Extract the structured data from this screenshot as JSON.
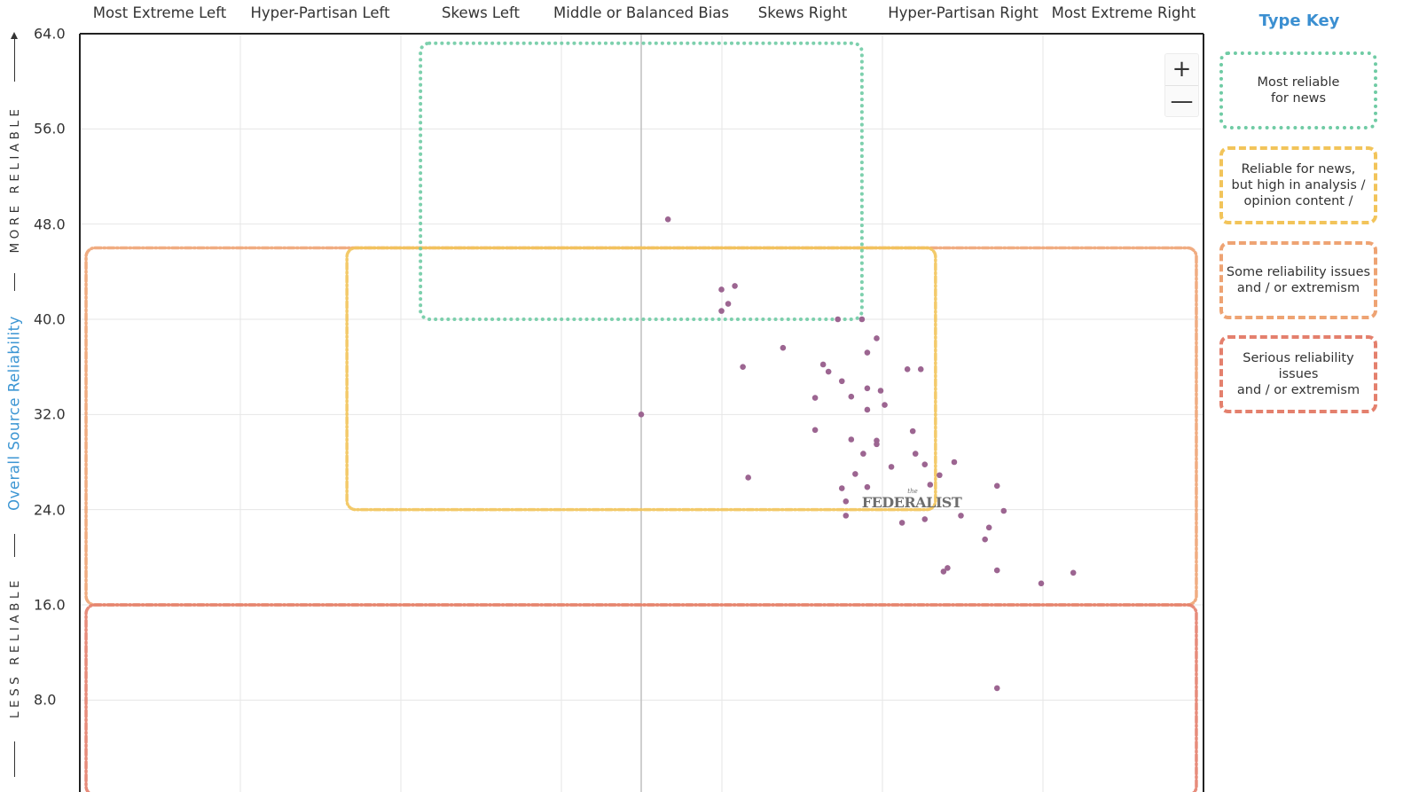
{
  "bias_labels": [
    "Most Extreme Left",
    "Hyper-Partisan Left",
    "Skews Left",
    "Middle or Balanced Bias",
    "Skews Right",
    "Hyper-Partisan Right",
    "Most Extreme Right"
  ],
  "y_axis": {
    "title": "Overall Source Reliability",
    "top_label": "MORE RELIABLE",
    "bottom_label": "LESS RELIABLE"
  },
  "zoom": {
    "in": "+",
    "out": "—"
  },
  "legend": {
    "title": "Type Key",
    "items": [
      {
        "label_line1": "Most reliable",
        "label_line2": "for news",
        "color": "#6fcba4",
        "style": "dotted"
      },
      {
        "label_line1": "Reliable for news,",
        "label_line2": "but high in analysis /",
        "label_line3": "opinion content /",
        "color": "#f2c45a",
        "style": "dashdot"
      },
      {
        "label_line1": "Some reliability issues",
        "label_line2": "and / or extremism",
        "color": "#eea373",
        "style": "dashdot"
      },
      {
        "label_line1": "Serious reliability issues",
        "label_line2": "and / or extremism",
        "color": "#e4806d",
        "style": "dashdot"
      }
    ]
  },
  "highlighted_source": {
    "name": "FEDERALIST",
    "prefix": "the"
  },
  "chart_data": {
    "type": "scatter",
    "xlim": [
      -42,
      42
    ],
    "ylim": [
      0,
      64
    ],
    "yticks": [
      8.0,
      16.0,
      24.0,
      32.0,
      40.0,
      48.0,
      56.0,
      64.0
    ],
    "grid": true,
    "point_color": "#9c6591",
    "regions": [
      {
        "type": "Most reliable for news",
        "x": [
          -16.5,
          16.5
        ],
        "y": [
          40,
          63.2
        ],
        "color": "#6fcba4"
      },
      {
        "type": "Reliable for news, but high in analysis / opinion content",
        "x": [
          -22,
          22
        ],
        "y": [
          24,
          46
        ],
        "color": "#f2c45a"
      },
      {
        "type": "Some reliability issues and / or extremism",
        "x": [
          -41.5,
          41.5
        ],
        "y": [
          16,
          46
        ],
        "color": "#eea373"
      },
      {
        "type": "Serious reliability issues and / or extremism",
        "x": [
          -41.5,
          41.5
        ],
        "y": [
          0,
          16
        ],
        "color": "#e4806d"
      }
    ],
    "points": [
      {
        "x": 2.0,
        "y": 48.4
      },
      {
        "x": 0.0,
        "y": 32.0
      },
      {
        "x": 6.0,
        "y": 42.5
      },
      {
        "x": 7.0,
        "y": 42.8
      },
      {
        "x": 6.5,
        "y": 41.3
      },
      {
        "x": 6.0,
        "y": 40.7
      },
      {
        "x": 7.6,
        "y": 36.0
      },
      {
        "x": 8.0,
        "y": 26.7
      },
      {
        "x": 10.6,
        "y": 37.6
      },
      {
        "x": 13.0,
        "y": 33.4
      },
      {
        "x": 13.0,
        "y": 30.7
      },
      {
        "x": 13.6,
        "y": 36.2
      },
      {
        "x": 14.0,
        "y": 35.6
      },
      {
        "x": 14.7,
        "y": 40.0
      },
      {
        "x": 15.0,
        "y": 34.8
      },
      {
        "x": 15.0,
        "y": 25.8
      },
      {
        "x": 15.3,
        "y": 24.7
      },
      {
        "x": 15.3,
        "y": 23.5
      },
      {
        "x": 15.7,
        "y": 33.5
      },
      {
        "x": 15.7,
        "y": 29.9
      },
      {
        "x": 16.0,
        "y": 27.0
      },
      {
        "x": 16.5,
        "y": 40.0
      },
      {
        "x": 16.6,
        "y": 28.7
      },
      {
        "x": 16.9,
        "y": 37.2
      },
      {
        "x": 16.9,
        "y": 34.2
      },
      {
        "x": 16.9,
        "y": 32.4
      },
      {
        "x": 16.9,
        "y": 25.9
      },
      {
        "x": 17.6,
        "y": 38.4
      },
      {
        "x": 17.6,
        "y": 29.8
      },
      {
        "x": 17.6,
        "y": 29.5
      },
      {
        "x": 17.9,
        "y": 34.0
      },
      {
        "x": 18.2,
        "y": 32.8
      },
      {
        "x": 18.7,
        "y": 27.6
      },
      {
        "x": 19.5,
        "y": 22.9
      },
      {
        "x": 19.9,
        "y": 35.8
      },
      {
        "x": 20.3,
        "y": 30.6
      },
      {
        "x": 20.5,
        "y": 28.7
      },
      {
        "x": 20.9,
        "y": 35.8
      },
      {
        "x": 21.2,
        "y": 27.8
      },
      {
        "x": 21.2,
        "y": 23.2
      },
      {
        "x": 21.6,
        "y": 26.1
      },
      {
        "x": 22.3,
        "y": 26.9
      },
      {
        "x": 22.6,
        "y": 18.8
      },
      {
        "x": 22.9,
        "y": 19.1
      },
      {
        "x": 23.4,
        "y": 28.0
      },
      {
        "x": 23.9,
        "y": 23.5
      },
      {
        "x": 25.7,
        "y": 21.5
      },
      {
        "x": 26.0,
        "y": 22.5
      },
      {
        "x": 26.6,
        "y": 26.0
      },
      {
        "x": 26.6,
        "y": 18.9
      },
      {
        "x": 26.6,
        "y": 9.0
      },
      {
        "x": 27.1,
        "y": 23.9
      },
      {
        "x": 29.9,
        "y": 17.8
      },
      {
        "x": 32.3,
        "y": 18.7
      }
    ]
  }
}
